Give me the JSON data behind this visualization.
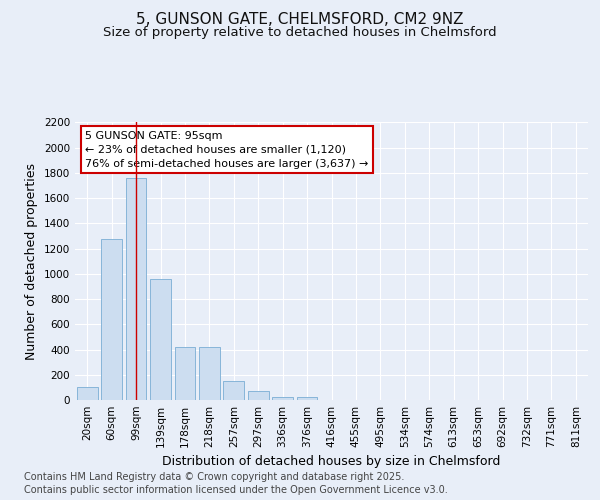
{
  "title1": "5, GUNSON GATE, CHELMSFORD, CM2 9NZ",
  "title2": "Size of property relative to detached houses in Chelmsford",
  "xlabel": "Distribution of detached houses by size in Chelmsford",
  "ylabel": "Number of detached properties",
  "categories": [
    "20sqm",
    "60sqm",
    "99sqm",
    "139sqm",
    "178sqm",
    "218sqm",
    "257sqm",
    "297sqm",
    "336sqm",
    "376sqm",
    "416sqm",
    "455sqm",
    "495sqm",
    "534sqm",
    "574sqm",
    "613sqm",
    "653sqm",
    "692sqm",
    "732sqm",
    "771sqm",
    "811sqm"
  ],
  "values": [
    100,
    1280,
    1760,
    960,
    420,
    420,
    150,
    70,
    25,
    25,
    0,
    0,
    0,
    0,
    0,
    0,
    0,
    0,
    0,
    0,
    0
  ],
  "bar_color": "#ccddf0",
  "bar_edgecolor": "#7aadd4",
  "vline_x_index": 2,
  "vline_color": "#cc0000",
  "annotation_text": "5 GUNSON GATE: 95sqm\n← 23% of detached houses are smaller (1,120)\n76% of semi-detached houses are larger (3,637) →",
  "annotation_box_facecolor": "#ffffff",
  "annotation_box_edgecolor": "#cc0000",
  "ylim": [
    0,
    2200
  ],
  "yticks": [
    0,
    200,
    400,
    600,
    800,
    1000,
    1200,
    1400,
    1600,
    1800,
    2000,
    2200
  ],
  "background_color": "#e8eef8",
  "plot_background": "#e8eef8",
  "grid_color": "#ffffff",
  "footer_line1": "Contains HM Land Registry data © Crown copyright and database right 2025.",
  "footer_line2": "Contains public sector information licensed under the Open Government Licence v3.0.",
  "title_fontsize": 11,
  "subtitle_fontsize": 9.5,
  "axis_label_fontsize": 9,
  "tick_fontsize": 7.5,
  "footer_fontsize": 7
}
